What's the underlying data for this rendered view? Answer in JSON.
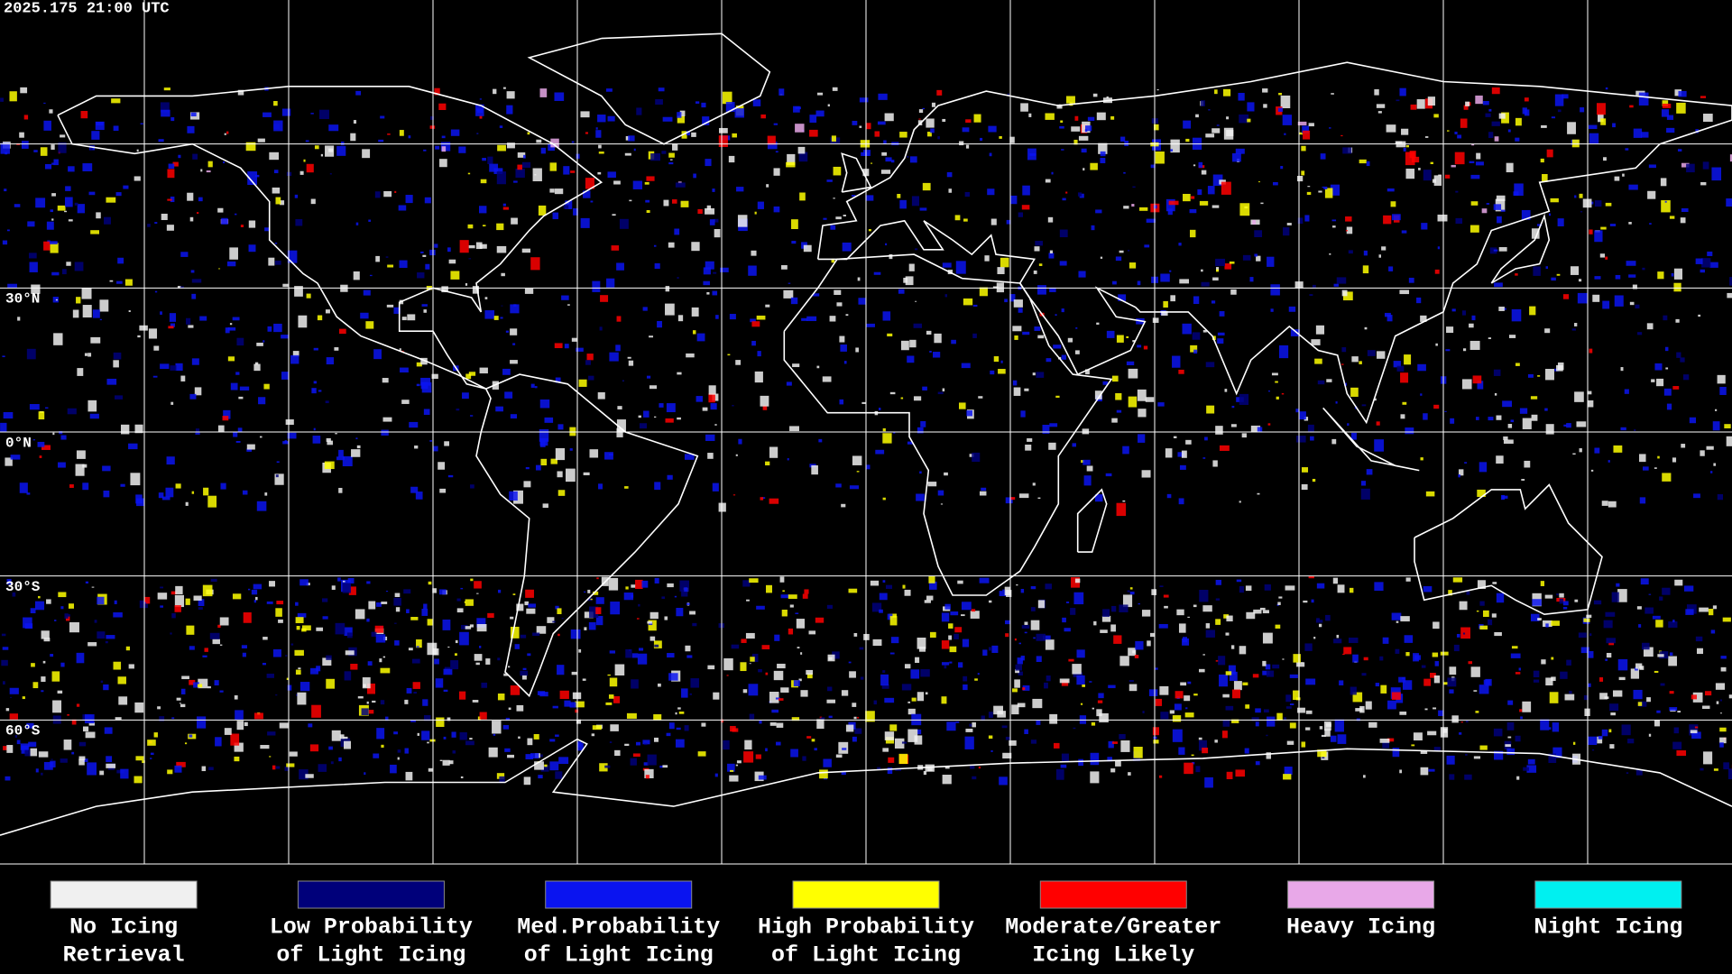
{
  "header": {
    "timestamp": "2025.175 21:00 UTC"
  },
  "map": {
    "latitude_labels": [
      "30°N",
      "0°N",
      "30°S",
      "60°S"
    ]
  },
  "legend": {
    "items": [
      {
        "lines": [
          "No Icing",
          "Retrieval"
        ],
        "color": "#f0f0f0"
      },
      {
        "lines": [
          "Low Probability",
          "of Light Icing"
        ],
        "color": "#00007a"
      },
      {
        "lines": [
          "Med.Probability",
          "of Light Icing"
        ],
        "color": "#0a14f0"
      },
      {
        "lines": [
          "High Probability",
          "of Light Icing"
        ],
        "color": "#ffff00"
      },
      {
        "lines": [
          "Moderate/Greater",
          "Icing Likely"
        ],
        "color": "#ff0000"
      },
      {
        "lines": [
          "Heavy Icing"
        ],
        "color": "#e8a8e8"
      },
      {
        "lines": [
          "Night Icing"
        ],
        "color": "#00f0f0"
      }
    ]
  }
}
